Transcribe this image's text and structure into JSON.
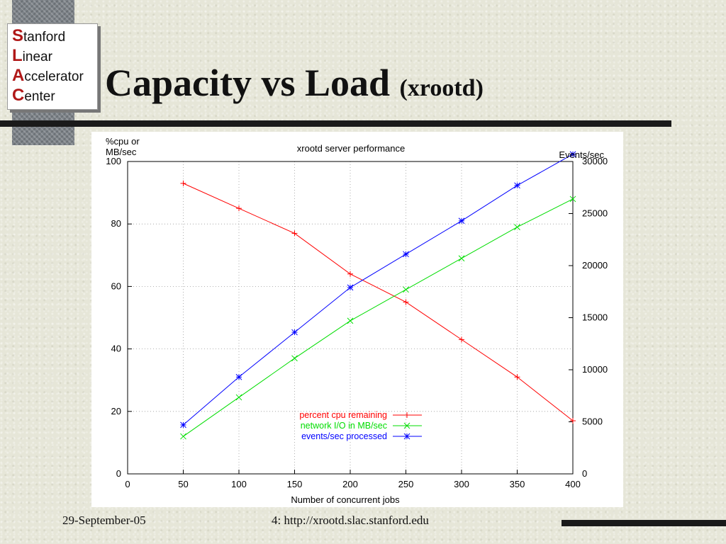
{
  "slide": {
    "title": "Capacity vs Load",
    "subtitle": "(xrootd)",
    "footer_date": "29-September-05",
    "footer_page": "4: http://xrootd.slac.stanford.edu"
  },
  "logo": {
    "lines": [
      {
        "cap": "S",
        "rest": "tanford"
      },
      {
        "cap": "L",
        "rest": "inear"
      },
      {
        "cap": "A",
        "rest": "ccelerator"
      },
      {
        "cap": "C",
        "rest": "enter"
      }
    ],
    "accent_color": "#b01818"
  },
  "chart_data": {
    "type": "line",
    "title": "xrootd server performance",
    "xlabel": "Number of concurrent jobs",
    "ylabel_left": "%cpu or\nMB/sec",
    "ylabel_right": "Events/sec",
    "x": [
      50,
      100,
      150,
      200,
      250,
      300,
      350,
      400
    ],
    "xlim": [
      0,
      400
    ],
    "ylim_left": [
      0,
      100
    ],
    "ylim_right": [
      0,
      30000
    ],
    "x_ticks": [
      0,
      50,
      100,
      150,
      200,
      250,
      300,
      350,
      400
    ],
    "y_ticks_left": [
      0,
      20,
      40,
      60,
      80,
      100
    ],
    "y_ticks_right": [
      0,
      5000,
      10000,
      15000,
      20000,
      25000,
      30000
    ],
    "grid": true,
    "legend_position": "bottom-center",
    "series": [
      {
        "name": "percent cpu remaining",
        "axis": "left",
        "color": "#ff0000",
        "marker": "plus",
        "values": [
          93,
          85,
          77,
          64,
          55,
          43,
          31,
          17
        ]
      },
      {
        "name": "network I/O in MB/sec",
        "axis": "left",
        "color": "#00dd00",
        "marker": "cross",
        "values": [
          12,
          24.5,
          37,
          49,
          59,
          69,
          79,
          88
        ]
      },
      {
        "name": "events/sec processed",
        "axis": "right",
        "color": "#0000ff",
        "marker": "star",
        "values": [
          4700,
          9300,
          13600,
          17900,
          21100,
          24300,
          27700,
          30700
        ]
      }
    ]
  }
}
